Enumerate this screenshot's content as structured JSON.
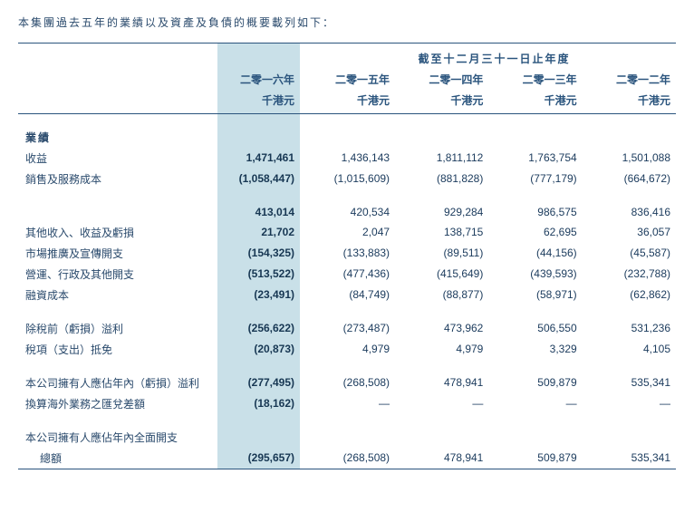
{
  "intro": "本集團過去五年的業績以及資產及負債的概要載列如下：",
  "superHeader": "截至十二月三十一日止年度",
  "years": [
    "二零一六年",
    "二零一五年",
    "二零一四年",
    "二零一三年",
    "二零一二年"
  ],
  "unit": "千港元",
  "sectionA": "業績",
  "rows": {
    "revenue": {
      "label": "收益",
      "v": [
        "1,471,461",
        "1,436,143",
        "1,811,112",
        "1,763,754",
        "1,501,088"
      ]
    },
    "cost": {
      "label": "銷售及服務成本",
      "v": [
        "(1,058,447)",
        "(1,015,609)",
        "(881,828)",
        "(777,179)",
        "(664,672)"
      ]
    },
    "subtotal": {
      "label": "",
      "v": [
        "413,014",
        "420,534",
        "929,284",
        "986,575",
        "836,416"
      ]
    },
    "other": {
      "label": "其他收入、收益及虧損",
      "v": [
        "21,702",
        "2,047",
        "138,715",
        "62,695",
        "36,057"
      ]
    },
    "marketing": {
      "label": "市場推廣及宣傳開支",
      "v": [
        "(154,325)",
        "(133,883)",
        "(89,511)",
        "(44,156)",
        "(45,587)"
      ]
    },
    "admin": {
      "label": "營運、行政及其他開支",
      "v": [
        "(513,522)",
        "(477,436)",
        "(415,649)",
        "(439,593)",
        "(232,788)"
      ]
    },
    "finance": {
      "label": "融資成本",
      "v": [
        "(23,491)",
        "(84,749)",
        "(88,877)",
        "(58,971)",
        "(62,862)"
      ]
    },
    "pbt": {
      "label": "除稅前（虧損）溢利",
      "v": [
        "(256,622)",
        "(273,487)",
        "473,962",
        "506,550",
        "531,236"
      ]
    },
    "tax": {
      "label": "稅項（支出）抵免",
      "v": [
        "(20,873)",
        "4,979",
        "4,979",
        "3,329",
        "4,105"
      ]
    },
    "owners": {
      "label": "本公司擁有人應佔年內（虧損）溢利",
      "v": [
        "(277,495)",
        "(268,508)",
        "478,941",
        "509,879",
        "535,341"
      ]
    },
    "fx": {
      "label": "換算海外業務之匯兌差額",
      "v": [
        "(18,162)",
        "—",
        "—",
        "—",
        "—"
      ]
    },
    "tci1": {
      "label": "本公司擁有人應佔年內全面開支",
      "v": [
        "",
        "",
        "",
        "",
        ""
      ]
    },
    "tci2": {
      "label": "總額",
      "v": [
        "(295,657)",
        "(268,508)",
        "478,941",
        "509,879",
        "535,341"
      ]
    }
  }
}
